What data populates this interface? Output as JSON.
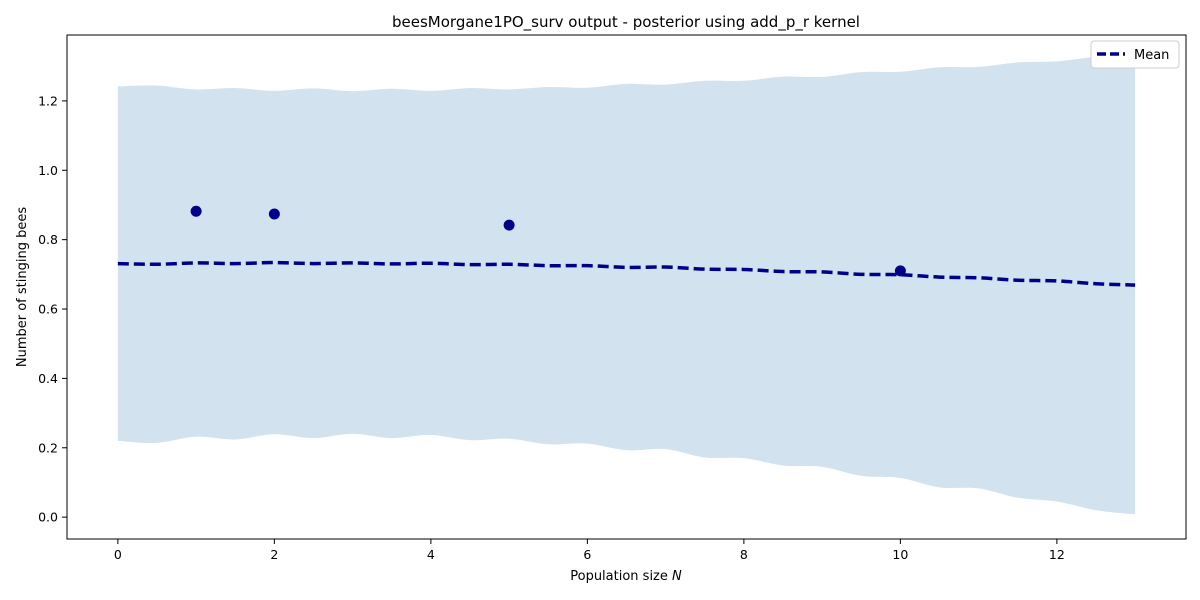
{
  "chart_data": {
    "type": "line",
    "title": "beesMorgane1PO_surv output - posterior using add_p_r kernel",
    "xlabel": "Population size",
    "xlabel_symbol": "N",
    "ylabel": "Number of stinging bees",
    "xlim": [
      -0.65,
      13.65
    ],
    "ylim": [
      -0.063,
      1.39
    ],
    "x_ticks": [
      0,
      2,
      4,
      6,
      8,
      10,
      12
    ],
    "y_ticks": [
      0.0,
      0.2,
      0.4,
      0.6,
      0.8,
      1.0,
      1.2
    ],
    "grid": false,
    "legend_position": "top-right",
    "mean_line": {
      "name": "Mean",
      "color": "#00008b",
      "style": "dashed",
      "x": [
        0,
        0.5,
        1,
        1.5,
        2,
        2.5,
        3,
        3.5,
        4,
        4.5,
        5,
        5.5,
        6,
        6.5,
        7,
        7.5,
        8,
        8.5,
        9,
        9.5,
        10,
        10.5,
        11,
        11.5,
        12,
        12.5,
        13
      ],
      "y": [
        0.731,
        0.729,
        0.733,
        0.731,
        0.734,
        0.731,
        0.733,
        0.73,
        0.732,
        0.728,
        0.729,
        0.725,
        0.725,
        0.72,
        0.721,
        0.715,
        0.714,
        0.708,
        0.707,
        0.7,
        0.699,
        0.692,
        0.69,
        0.683,
        0.681,
        0.673,
        0.669
      ]
    },
    "band": {
      "color": "#d2e3ef",
      "x": [
        0,
        0.5,
        1,
        1.5,
        2,
        2.5,
        3,
        3.5,
        4,
        4.5,
        5,
        5.5,
        6,
        6.5,
        7,
        7.5,
        8,
        8.5,
        9,
        9.5,
        10,
        10.5,
        11,
        11.5,
        12,
        12.5,
        13
      ],
      "upper": [
        1.242,
        1.244,
        1.233,
        1.237,
        1.229,
        1.236,
        1.228,
        1.235,
        1.229,
        1.237,
        1.233,
        1.24,
        1.238,
        1.249,
        1.247,
        1.258,
        1.258,
        1.27,
        1.269,
        1.283,
        1.284,
        1.297,
        1.298,
        1.311,
        1.314,
        1.327,
        1.331
      ],
      "lower": [
        0.22,
        0.214,
        0.232,
        0.224,
        0.239,
        0.228,
        0.24,
        0.228,
        0.237,
        0.222,
        0.226,
        0.21,
        0.212,
        0.193,
        0.196,
        0.172,
        0.17,
        0.149,
        0.145,
        0.119,
        0.113,
        0.086,
        0.083,
        0.056,
        0.045,
        0.02,
        0.008
      ]
    },
    "observations": {
      "color": "#00008b",
      "x": [
        1,
        2,
        5,
        10
      ],
      "y": [
        0.882,
        0.874,
        0.842,
        0.71
      ]
    }
  }
}
